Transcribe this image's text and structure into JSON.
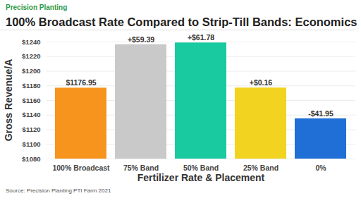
{
  "chart_data": {
    "type": "bar",
    "brand": "Precision Planting",
    "title": "100% Broadcast Rate Compared to Strip-Till Bands: Economics",
    "y_label": "Gross Revenue/A",
    "x_label": "Fertilizer Rate & Placement",
    "source": "Source: Precision Planting PTI Farm 2021",
    "categories": [
      "100% Broadcast",
      "75% Band",
      "50% Band",
      "25% Band",
      "0%"
    ],
    "values": [
      1176.95,
      1236.34,
      1238.73,
      1177.11,
      1135.0
    ],
    "colors": [
      "#f7941d",
      "#c9c9c9",
      "#19c9a0",
      "#f2d31f",
      "#1f6fd6"
    ],
    "annotations": [
      {
        "category": "100% Broadcast",
        "text": "$1176.95"
      },
      {
        "category": "75% Band",
        "text": "+$59.39"
      },
      {
        "category": "50% Band",
        "text": "+$61.78"
      },
      {
        "category": "25% Band",
        "text": "+$0.16"
      },
      {
        "category": "0%",
        "text": "-$41.95"
      }
    ],
    "ylim": [
      1080,
      1240
    ],
    "yticks": [
      {
        "value": 1080,
        "label": "$1080"
      },
      {
        "value": 1100,
        "label": "$1100"
      },
      {
        "value": 1120,
        "label": "$1120"
      },
      {
        "value": 1140,
        "label": "$1140"
      },
      {
        "value": 1160,
        "label": "$1160"
      },
      {
        "value": 1180,
        "label": "$1180"
      },
      {
        "value": 1200,
        "label": "$1200"
      },
      {
        "value": 1220,
        "label": "$1220"
      },
      {
        "value": 1240,
        "label": "$1240"
      }
    ],
    "grid": true
  }
}
